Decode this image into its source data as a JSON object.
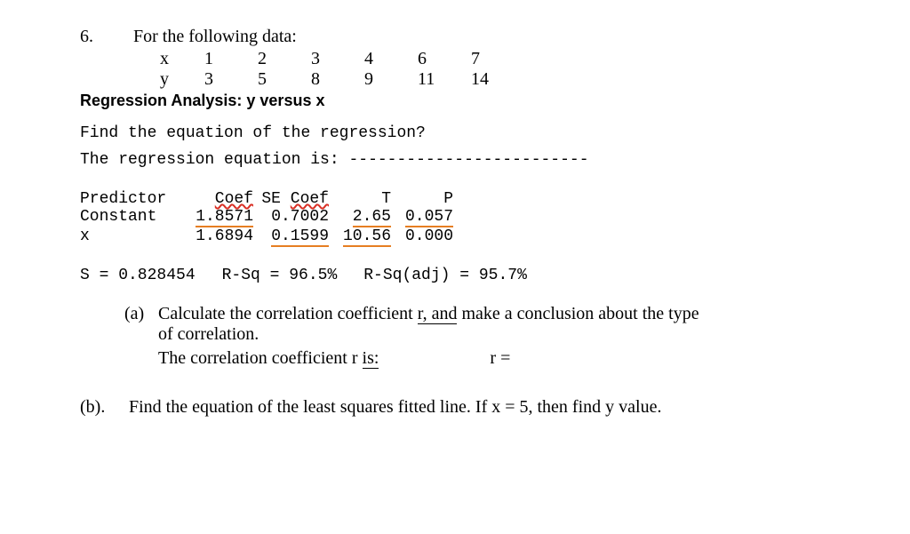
{
  "question": {
    "number": "6.",
    "prompt": "For the following data:"
  },
  "data_table": {
    "x_label": "x",
    "y_label": "y",
    "x_values": [
      "1",
      "2",
      "3",
      "4",
      "6",
      "7"
    ],
    "y_values": [
      "3",
      "5",
      "8",
      "9",
      "11",
      "14"
    ]
  },
  "regression_title": "Regression Analysis: y versus x",
  "find_equation": "Find the equation of the regression?",
  "regression_equation_label": "The regression equation is:",
  "regression_equation_dashes": "-------------------------",
  "predictor_table": {
    "headers": {
      "predictor": "Predictor",
      "coef": "Coef",
      "se_coef": "SE Coef",
      "t": "T",
      "p": "P"
    },
    "constant": {
      "label": "Constant",
      "coef": "1.8571",
      "se_coef": "0.7002",
      "t": "2.65",
      "p": "0.057"
    },
    "x": {
      "label": "x",
      "coef": "1.6894",
      "se_coef": "0.1599",
      "t": "10.56",
      "p": "0.000"
    }
  },
  "stats": {
    "s": "S = 0.828454",
    "rsq": "R-Sq = 96.5%",
    "rsq_adj": "R-Sq(adj) = 95.7%"
  },
  "part_a": {
    "label": "(a)",
    "text_1": "Calculate the correlation coefficient ",
    "r_and": "r, and",
    "text_2": " make a conclusion about the type",
    "text_3": "of correlation.",
    "correlation_text": "The correlation coefficient r ",
    "is": "is:",
    "r_equals": "r ="
  },
  "part_b": {
    "label": "(b).",
    "text": "Find the equation of the least squares fitted line. If x = 5, then find y value."
  },
  "colors": {
    "orange": "#e67e22",
    "red": "#d93025",
    "text": "#000000",
    "background": "#ffffff"
  },
  "fonts": {
    "serif": "Times New Roman",
    "sans": "Arial",
    "mono": "Courier New",
    "body_size": 20,
    "mono_size": 18,
    "bold_size": 18
  }
}
